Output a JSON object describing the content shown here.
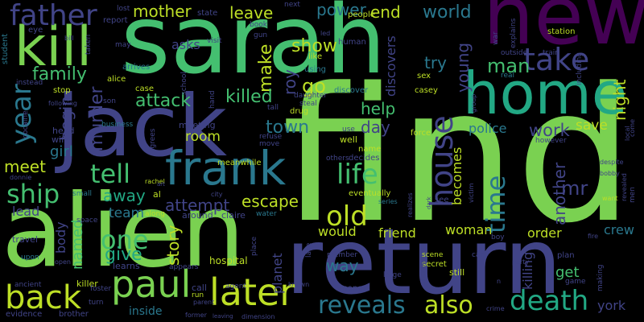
{
  "palette": {
    "background": "#000000",
    "c1": "#7ad151",
    "c2": "#44bf70",
    "c3": "#22a884",
    "c4": "#2a788e",
    "c5": "#414487",
    "c6": "#440154",
    "c7": "#bddf26",
    "c8": "#355f8d"
  },
  "words": [
    {
      "text": "find",
      "color": "c1"
    },
    {
      "text": "sarah",
      "color": "c2"
    },
    {
      "text": "new",
      "color": "c6"
    },
    {
      "text": "alien",
      "color": "c1"
    },
    {
      "text": "return",
      "color": "c5"
    },
    {
      "text": "jack",
      "color": "c5"
    },
    {
      "text": "home",
      "color": "c3"
    },
    {
      "text": "kill",
      "color": "c1"
    },
    {
      "text": "frank",
      "color": "c4"
    },
    {
      "text": "paul",
      "color": "c1"
    },
    {
      "text": "later",
      "color": "c7"
    },
    {
      "text": "back",
      "color": "c7"
    },
    {
      "text": "father",
      "color": "c5"
    },
    {
      "text": "take",
      "color": "c5"
    },
    {
      "text": "death",
      "color": "c3"
    },
    {
      "text": "reveals",
      "color": "c4"
    },
    {
      "text": "also",
      "color": "c7"
    },
    {
      "text": "tell",
      "color": "c2"
    },
    {
      "text": "house",
      "color": "c5"
    },
    {
      "text": "life",
      "color": "c2"
    },
    {
      "text": "old",
      "color": "c7"
    },
    {
      "text": "one",
      "color": "c2"
    },
    {
      "text": "ship",
      "color": "c2"
    },
    {
      "text": "year",
      "color": "c4"
    },
    {
      "text": "time",
      "color": "c4"
    },
    {
      "text": "world",
      "color": "c4"
    },
    {
      "text": "man",
      "color": "c2"
    },
    {
      "text": "show",
      "color": "c7"
    },
    {
      "text": "mother",
      "color": "c7"
    },
    {
      "text": "leave",
      "color": "c7"
    },
    {
      "text": "end",
      "color": "c7"
    },
    {
      "text": "power",
      "color": "c4"
    },
    {
      "text": "family",
      "color": "c2"
    },
    {
      "text": "make",
      "color": "c7"
    },
    {
      "text": "killed",
      "color": "c2"
    },
    {
      "text": "attack",
      "color": "c2"
    },
    {
      "text": "town",
      "color": "c4"
    },
    {
      "text": "go",
      "color": "c7"
    },
    {
      "text": "help",
      "color": "c2"
    },
    {
      "text": "day",
      "color": "c5"
    },
    {
      "text": "murder",
      "color": "c5"
    },
    {
      "text": "begin",
      "color": "c5"
    },
    {
      "text": "meet",
      "color": "c7"
    },
    {
      "text": "girl",
      "color": "c4"
    },
    {
      "text": "room",
      "color": "c7"
    },
    {
      "text": "away",
      "color": "c3"
    },
    {
      "text": "attempt",
      "color": "c5"
    },
    {
      "text": "escape",
      "color": "c7"
    },
    {
      "text": "police",
      "color": "c4"
    },
    {
      "text": "save",
      "color": "c7"
    },
    {
      "text": "work",
      "color": "c5"
    },
    {
      "text": "mr",
      "color": "c5"
    },
    {
      "text": "another",
      "color": "c5"
    },
    {
      "text": "becomes",
      "color": "c7"
    },
    {
      "text": "night",
      "color": "c7"
    },
    {
      "text": "young",
      "color": "c5"
    },
    {
      "text": "try",
      "color": "c4"
    },
    {
      "text": "roy",
      "color": "c5"
    },
    {
      "text": "body",
      "color": "c5"
    },
    {
      "text": "named",
      "color": "c2"
    },
    {
      "text": "give",
      "color": "c3"
    },
    {
      "text": "story",
      "color": "c7"
    },
    {
      "text": "team",
      "color": "c4"
    },
    {
      "text": "lead",
      "color": "c5"
    },
    {
      "text": "would",
      "color": "c7"
    },
    {
      "text": "friend",
      "color": "c7"
    },
    {
      "text": "woman",
      "color": "c7"
    },
    {
      "text": "order",
      "color": "c7"
    },
    {
      "text": "crew",
      "color": "c4"
    },
    {
      "text": "way",
      "color": "c4"
    },
    {
      "text": "get",
      "color": "c2"
    },
    {
      "text": "killing",
      "color": "c5"
    },
    {
      "text": "york",
      "color": "c5"
    },
    {
      "text": "planet",
      "color": "c5"
    },
    {
      "text": "discovers",
      "color": "c5"
    },
    {
      "text": "asks",
      "color": "c5"
    },
    {
      "text": "killer",
      "color": "c7"
    },
    {
      "text": "inside",
      "color": "c4"
    },
    {
      "text": "hospital",
      "color": "c7"
    },
    {
      "text": "student",
      "color": "c4"
    },
    {
      "text": "eye",
      "color": "c5"
    },
    {
      "text": "report",
      "color": "c5"
    },
    {
      "text": "state",
      "color": "c5"
    },
    {
      "text": "lost",
      "color": "c5"
    },
    {
      "text": "next",
      "color": "c5"
    },
    {
      "text": "book",
      "color": "c5"
    },
    {
      "text": "visit",
      "color": "c5"
    },
    {
      "text": "people",
      "color": "c7"
    },
    {
      "text": "human",
      "color": "c5"
    },
    {
      "text": "like",
      "color": "c7"
    },
    {
      "text": "using",
      "color": "c4"
    },
    {
      "text": "drug",
      "color": "c7"
    },
    {
      "text": "discover",
      "color": "c4"
    },
    {
      "text": "casey",
      "color": "c7"
    },
    {
      "text": "sex",
      "color": "c7"
    },
    {
      "text": "war",
      "color": "c5"
    },
    {
      "text": "station",
      "color": "c7"
    },
    {
      "text": "outside",
      "color": "c5"
    },
    {
      "text": "explains",
      "color": "c5"
    },
    {
      "text": "train",
      "color": "c5"
    },
    {
      "text": "real",
      "color": "c4"
    },
    {
      "text": "including",
      "color": "c5"
    },
    {
      "text": "may",
      "color": "c5"
    },
    {
      "text": "arrives",
      "color": "c4"
    },
    {
      "text": "alice",
      "color": "c7"
    },
    {
      "text": "case",
      "color": "c7"
    },
    {
      "text": "stop",
      "color": "c7"
    },
    {
      "text": "instead",
      "color": "c5"
    },
    {
      "text": "head",
      "color": "c5"
    },
    {
      "text": "wife",
      "color": "c5"
    },
    {
      "text": "meeting",
      "color": "c5"
    },
    {
      "text": "business",
      "color": "c4"
    },
    {
      "text": "refuse",
      "color": "c5"
    },
    {
      "text": "move",
      "color": "c5"
    },
    {
      "text": "agrees",
      "color": "c5"
    },
    {
      "text": "meanwhile",
      "color": "c7"
    },
    {
      "text": "well",
      "color": "c7"
    },
    {
      "text": "decides",
      "color": "c5"
    },
    {
      "text": "name",
      "color": "c7"
    },
    {
      "text": "force",
      "color": "c7"
    },
    {
      "text": "however",
      "color": "c5"
    },
    {
      "text": "use",
      "color": "c5"
    },
    {
      "text": "others",
      "color": "c5"
    },
    {
      "text": "eventually",
      "color": "c7"
    },
    {
      "text": "series",
      "color": "c4"
    },
    {
      "text": "small",
      "color": "c4"
    },
    {
      "text": "al",
      "color": "c7"
    },
    {
      "text": "around",
      "color": "c5"
    },
    {
      "text": "claire",
      "color": "c5"
    },
    {
      "text": "water",
      "color": "c4"
    },
    {
      "text": "space",
      "color": "c5"
    },
    {
      "text": "learns",
      "color": "c5"
    },
    {
      "text": "travel",
      "color": "c5"
    },
    {
      "text": "upon",
      "color": "c4"
    },
    {
      "text": "open",
      "color": "c5"
    },
    {
      "text": "appears",
      "color": "c5"
    },
    {
      "text": "member",
      "color": "c5"
    },
    {
      "text": "scene",
      "color": "c7"
    },
    {
      "text": "secret",
      "color": "c7"
    },
    {
      "text": "still",
      "color": "c7"
    },
    {
      "text": "car",
      "color": "c5"
    },
    {
      "text": "party",
      "color": "c5"
    },
    {
      "text": "plan",
      "color": "c5"
    },
    {
      "text": "boy",
      "color": "c5"
    },
    {
      "text": "fire",
      "color": "c5"
    },
    {
      "text": "making",
      "color": "c5"
    },
    {
      "text": "game",
      "color": "c5"
    },
    {
      "text": "men",
      "color": "c5"
    },
    {
      "text": "ancient",
      "color": "c5"
    },
    {
      "text": "evidence",
      "color": "c5"
    },
    {
      "text": "brother",
      "color": "c5"
    },
    {
      "text": "turn",
      "color": "c5"
    },
    {
      "text": "call",
      "color": "c5"
    },
    {
      "text": "run",
      "color": "c7"
    },
    {
      "text": "agent",
      "color": "c5"
    },
    {
      "text": "former",
      "color": "c5"
    },
    {
      "text": "parent",
      "color": "c5"
    },
    {
      "text": "money",
      "color": "c5"
    },
    {
      "text": "large",
      "color": "c5"
    },
    {
      "text": "andrew",
      "color": "c5"
    },
    {
      "text": "crime",
      "color": "c5"
    },
    {
      "text": "bobby",
      "color": "c5"
    },
    {
      "text": "want",
      "color": "c7"
    },
    {
      "text": "revealed",
      "color": "c5"
    },
    {
      "text": "despite",
      "color": "c5"
    },
    {
      "text": "come",
      "color": "c5"
    },
    {
      "text": "local",
      "color": "c5"
    },
    {
      "text": "victim",
      "color": "c5"
    },
    {
      "text": "realizes",
      "color": "c5"
    },
    {
      "text": "see",
      "color": "c5"
    },
    {
      "text": "lake",
      "color": "c5"
    },
    {
      "text": "place",
      "color": "c5"
    },
    {
      "text": "known",
      "color": "c5"
    },
    {
      "text": "foster",
      "color": "c5"
    },
    {
      "text": "rachel",
      "color": "c7"
    },
    {
      "text": "along",
      "color": "c7"
    },
    {
      "text": "school",
      "color": "c5"
    },
    {
      "text": "son",
      "color": "c5"
    },
    {
      "text": "cocaine",
      "color": "c5"
    },
    {
      "text": "donnie",
      "color": "c5"
    },
    {
      "text": "gun",
      "color": "c5"
    },
    {
      "text": "tall",
      "color": "c5"
    },
    {
      "text": "steal",
      "color": "c5"
    },
    {
      "text": "daughter",
      "color": "c5"
    },
    {
      "text": "led",
      "color": "c5"
    },
    {
      "text": "taken",
      "color": "c5"
    },
    {
      "text": "bill",
      "color": "c5"
    },
    {
      "text": "hand",
      "color": "c5"
    },
    {
      "text": "following",
      "color": "c5"
    },
    {
      "text": "dimension",
      "color": "c5"
    },
    {
      "text": "leaving",
      "color": "c5"
    },
    {
      "text": "group",
      "color": "c5"
    },
    {
      "text": "dark",
      "color": "c5"
    },
    {
      "text": "city",
      "color": "c5"
    },
    {
      "text": "art",
      "color": "c5"
    },
    {
      "text": "n",
      "color": "c5"
    }
  ]
}
